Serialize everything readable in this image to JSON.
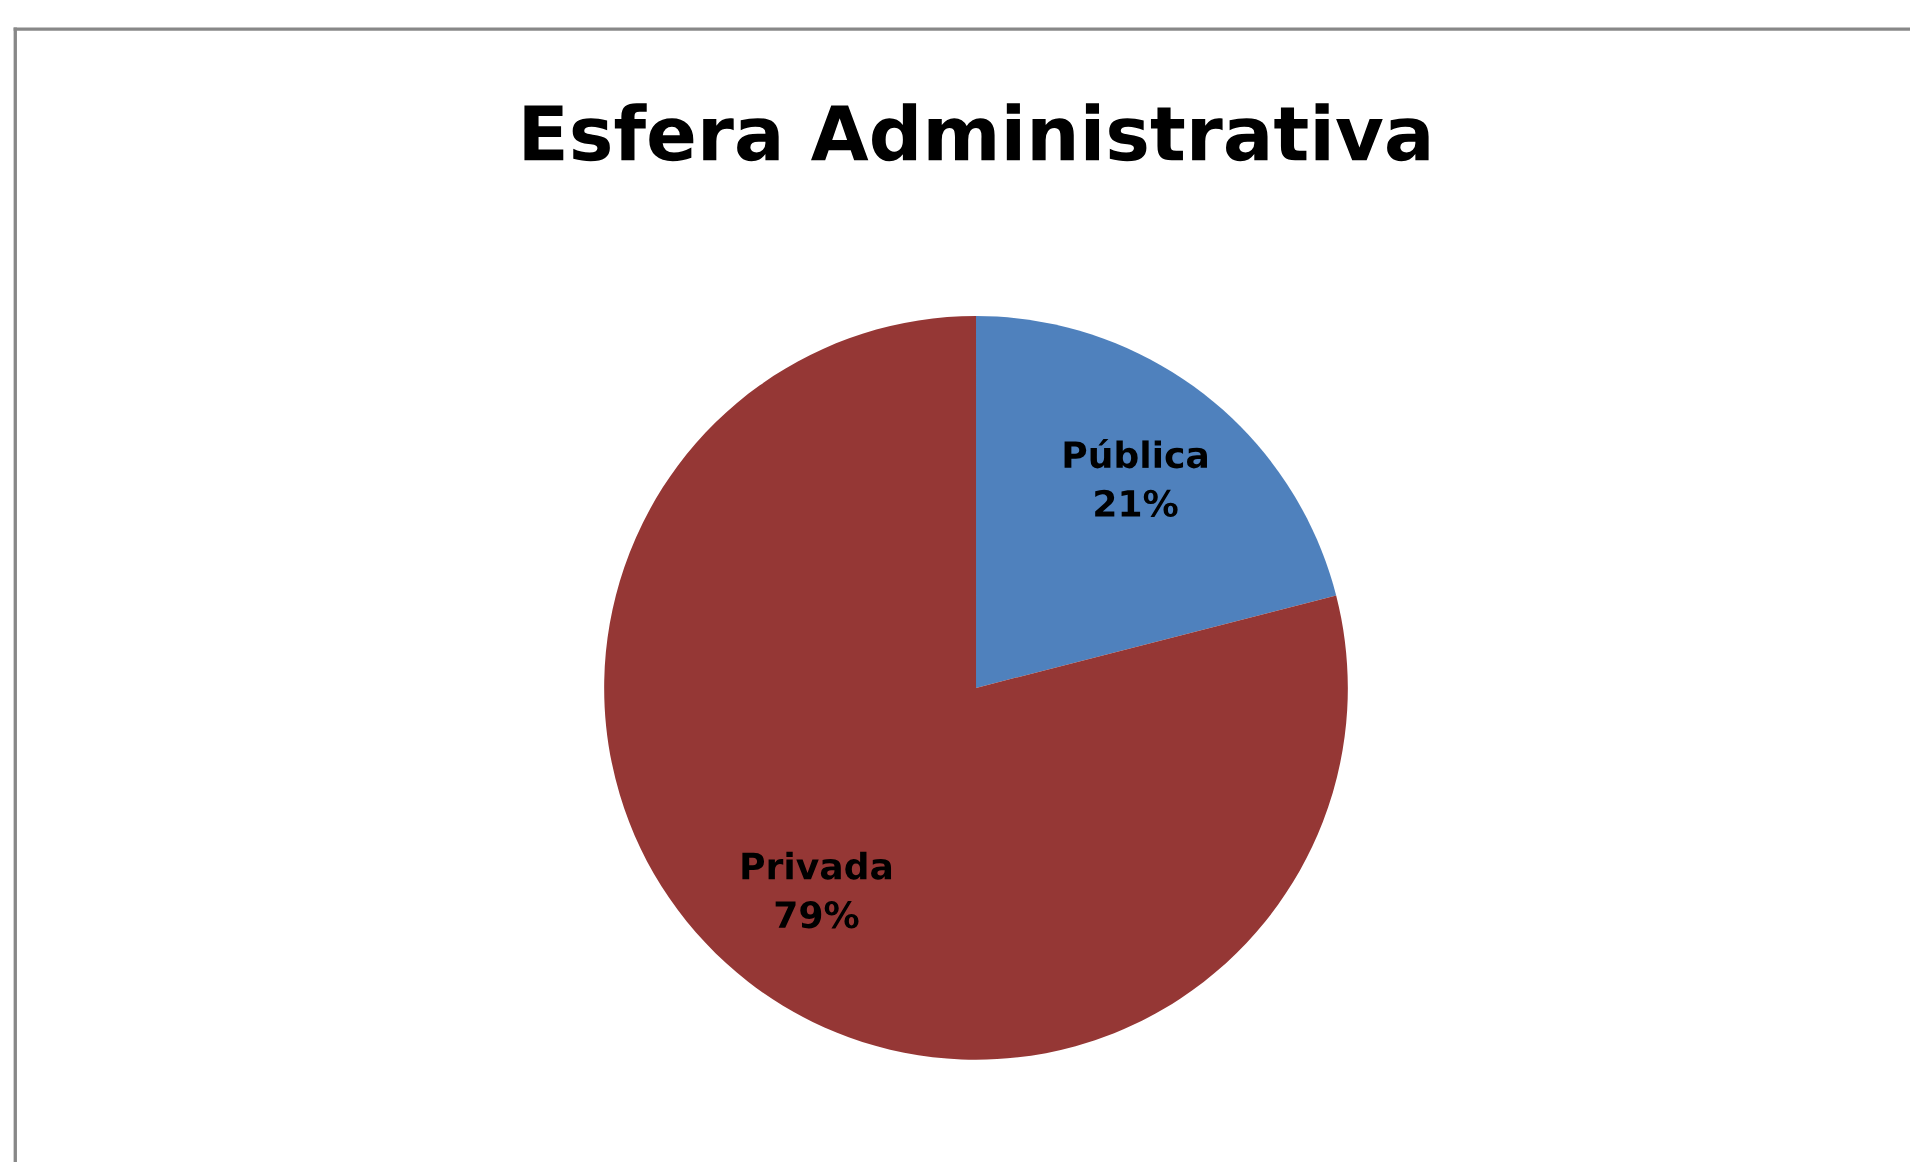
{
  "chart_data": {
    "type": "pie",
    "title": "Esfera Administrativa",
    "categories": [
      "Pública",
      "Privada"
    ],
    "values": [
      21,
      79
    ],
    "colors": [
      "#4f81bd",
      "#953735"
    ],
    "value_labels": [
      "21%",
      "79%"
    ]
  }
}
